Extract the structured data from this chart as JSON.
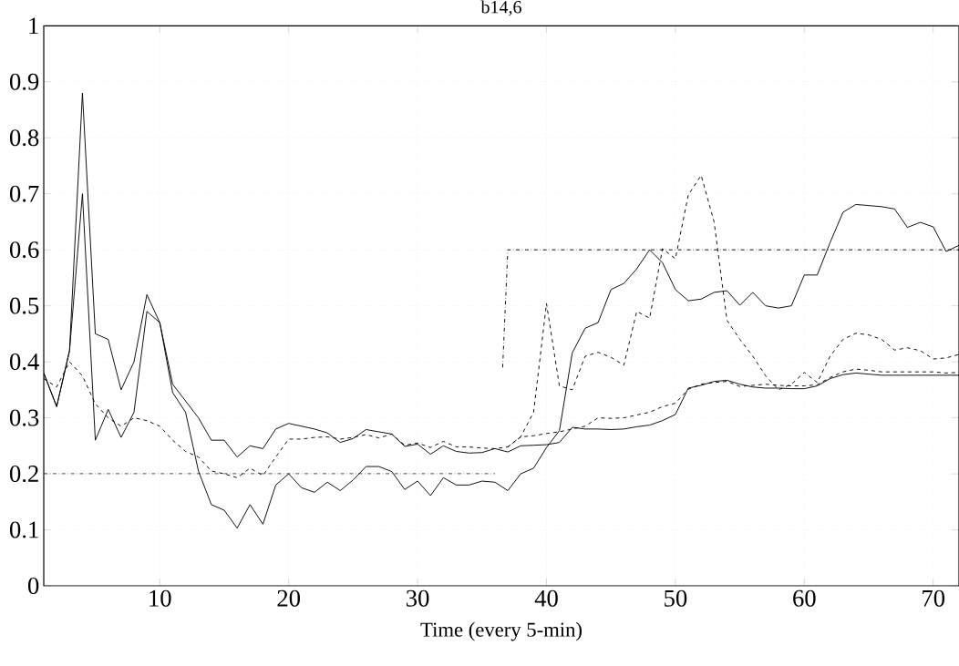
{
  "chart_data": {
    "type": "line",
    "title": "b14,6",
    "xlabel": "Time (every 5-min)",
    "xlim": [
      1,
      72
    ],
    "ylim": [
      0,
      1
    ],
    "xticks": [
      10,
      20,
      30,
      40,
      50,
      60,
      70
    ],
    "yticks": [
      0,
      0.1,
      0.2,
      0.3,
      0.4,
      0.5,
      0.6,
      0.7,
      0.8,
      0.9,
      1
    ],
    "grid": true,
    "marker": "none",
    "series": [
      {
        "color": "#000000",
        "line_style": "solid",
        "x": [
          1,
          2,
          3,
          4,
          5,
          6,
          7,
          8,
          9,
          10,
          11,
          12,
          13,
          14,
          15,
          16,
          17,
          18,
          19,
          20,
          21,
          22,
          23,
          24,
          25,
          26,
          27,
          28,
          29,
          30,
          31,
          32,
          33,
          34,
          35,
          36,
          37,
          38,
          39,
          40,
          41,
          42,
          43,
          44,
          45,
          46,
          47,
          48,
          49,
          50,
          51,
          52,
          53,
          54,
          55,
          56,
          57,
          58,
          59,
          60,
          61,
          62,
          63,
          64,
          65,
          66,
          67,
          68,
          69,
          70,
          71,
          72
        ],
        "values": [
          0.38,
          0.32,
          0.42,
          0.88,
          0.45,
          0.44,
          0.35,
          0.4,
          0.52,
          0.47,
          0.36,
          0.33,
          0.3,
          0.26,
          0.26,
          0.23,
          0.25,
          0.245,
          0.28,
          0.29,
          0.285,
          0.28,
          0.273,
          0.256,
          0.263,
          0.279,
          0.275,
          0.271,
          0.249,
          0.253,
          0.235,
          0.25,
          0.24,
          0.237,
          0.238,
          0.245,
          0.239,
          0.25,
          0.251,
          0.252,
          0.256,
          0.283,
          0.28,
          0.28,
          0.279,
          0.28,
          0.284,
          0.287,
          0.295,
          0.306,
          0.353,
          0.358,
          0.365,
          0.367,
          0.36,
          0.355,
          0.353,
          0.353,
          0.352,
          0.352,
          0.357,
          0.37,
          0.377,
          0.38,
          0.378,
          0.376,
          0.376,
          0.376,
          0.376,
          0.376,
          0.376,
          0.376
        ]
      },
      {
        "color": "#000000",
        "line_style": "solid",
        "x": [
          1,
          2,
          3,
          4,
          5,
          6,
          7,
          8,
          9,
          10,
          11,
          12,
          13,
          14,
          15,
          16,
          17,
          18,
          19,
          20,
          21,
          22,
          23,
          24,
          25,
          26,
          27,
          28,
          29,
          30,
          31,
          32,
          33,
          34,
          35,
          36,
          37,
          38,
          39,
          40,
          41,
          42,
          43,
          44,
          45,
          46,
          47,
          48,
          49,
          50,
          51,
          52,
          53,
          54,
          55,
          56,
          57,
          58,
          59,
          60,
          61,
          62,
          63,
          64,
          65,
          66,
          67,
          68,
          69,
          70,
          71,
          72
        ],
        "values": [
          0.38,
          0.32,
          0.42,
          0.7,
          0.26,
          0.315,
          0.265,
          0.31,
          0.49,
          0.47,
          0.345,
          0.31,
          0.205,
          0.145,
          0.135,
          0.103,
          0.145,
          0.11,
          0.18,
          0.2,
          0.175,
          0.167,
          0.185,
          0.17,
          0.189,
          0.213,
          0.213,
          0.204,
          0.172,
          0.187,
          0.161,
          0.193,
          0.18,
          0.18,
          0.187,
          0.185,
          0.17,
          0.2,
          0.21,
          0.247,
          0.277,
          0.416,
          0.46,
          0.47,
          0.529,
          0.54,
          0.566,
          0.6,
          0.577,
          0.529,
          0.509,
          0.512,
          0.524,
          0.527,
          0.501,
          0.524,
          0.5,
          0.496,
          0.5,
          0.555,
          0.555,
          0.613,
          0.667,
          0.681,
          0.679,
          0.677,
          0.673,
          0.64,
          0.649,
          0.641,
          0.597,
          0.608
        ]
      },
      {
        "color": "#000000",
        "line_style": "dashed",
        "x": [
          1,
          2,
          3,
          4,
          5,
          6,
          7,
          8,
          9,
          10,
          11,
          12,
          13,
          14,
          15,
          16,
          17,
          18,
          19,
          20,
          21,
          22,
          23,
          24,
          25,
          26,
          27,
          28,
          29,
          30,
          31,
          32,
          33,
          34,
          35,
          36,
          37,
          38,
          39,
          40,
          41,
          42,
          43,
          44,
          45,
          46,
          47,
          48,
          49,
          50,
          51,
          52,
          53,
          54,
          55,
          56,
          57,
          58,
          59,
          60,
          61,
          62,
          63,
          64,
          65,
          66,
          67,
          68,
          69,
          70,
          71,
          72
        ],
        "values": [
          0.37,
          0.355,
          0.4,
          0.375,
          0.325,
          0.3,
          0.285,
          0.3,
          0.295,
          0.285,
          0.26,
          0.24,
          0.23,
          0.205,
          0.2,
          0.193,
          0.21,
          0.197,
          0.23,
          0.262,
          0.262,
          0.265,
          0.266,
          0.262,
          0.265,
          0.27,
          0.264,
          0.271,
          0.251,
          0.255,
          0.247,
          0.258,
          0.248,
          0.248,
          0.246,
          0.245,
          0.248,
          0.266,
          0.268,
          0.272,
          0.275,
          0.28,
          0.285,
          0.3,
          0.299,
          0.3,
          0.305,
          0.31,
          0.32,
          0.326,
          0.351,
          0.36,
          0.363,
          0.365,
          0.356,
          0.358,
          0.36,
          0.358,
          0.357,
          0.357,
          0.359,
          0.372,
          0.382,
          0.387,
          0.385,
          0.382,
          0.382,
          0.382,
          0.382,
          0.382,
          0.38,
          0.381
        ]
      },
      {
        "color": "#000000",
        "line_style": "dashed",
        "x": [
          37,
          38,
          39,
          40,
          41,
          42,
          43,
          44,
          45,
          46,
          47,
          48,
          49,
          50,
          51,
          52,
          53,
          54,
          55,
          56,
          57,
          58,
          59,
          60,
          61,
          62,
          63,
          64,
          65,
          66,
          67,
          68,
          69,
          70,
          71,
          72
        ],
        "values": [
          0.248,
          0.266,
          0.31,
          0.504,
          0.357,
          0.35,
          0.41,
          0.417,
          0.408,
          0.394,
          0.49,
          0.478,
          0.602,
          0.584,
          0.698,
          0.733,
          0.65,
          0.474,
          0.44,
          0.41,
          0.375,
          0.35,
          0.36,
          0.381,
          0.363,
          0.41,
          0.44,
          0.451,
          0.448,
          0.44,
          0.421,
          0.425,
          0.42,
          0.405,
          0.407,
          0.413
        ]
      },
      {
        "color": "#000000",
        "line_style": "dashdot",
        "x": [
          1,
          36,
          36.5,
          36.6,
          37,
          72
        ],
        "values": [
          0.2,
          0.2,
          null,
          0.39,
          0.6,
          0.6
        ]
      }
    ]
  }
}
